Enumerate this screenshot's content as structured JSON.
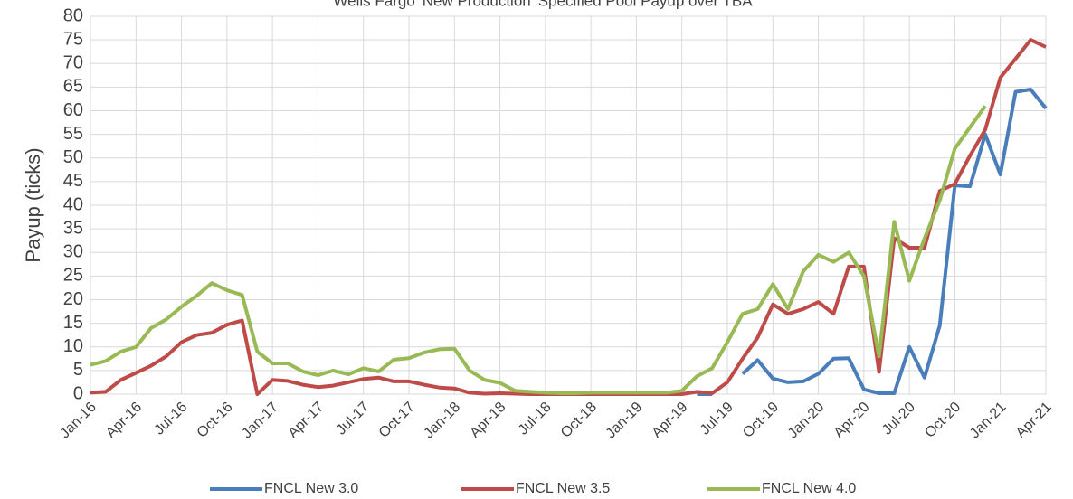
{
  "chart_data": {
    "type": "line",
    "title": "Wells Fargo 'New Production' Specified Pool Payup over TBA",
    "y_label": "Payup (ticks)",
    "categories": [
      "Jan-16",
      null,
      null,
      "Apr-16",
      null,
      null,
      "Jul-16",
      null,
      null,
      "Oct-16",
      null,
      null,
      "Jan-17",
      null,
      null,
      "Apr-17",
      null,
      null,
      "Jul-17",
      null,
      null,
      "Oct-17",
      null,
      null,
      "Jan-18",
      null,
      null,
      "Apr-18",
      null,
      null,
      "Jul-18",
      null,
      null,
      "Oct-18",
      null,
      null,
      "Jan-19",
      null,
      null,
      "Apr-19",
      null,
      null,
      "Jul-19",
      null,
      null,
      "Oct-19",
      null,
      null,
      "Jan-20",
      null,
      null,
      "Apr-20",
      null,
      null,
      "Jul-20",
      null,
      null,
      "Oct-20",
      null,
      null,
      "Jan-21",
      null,
      null,
      "Apr-21"
    ],
    "series": [
      {
        "name": "FNCL New 3.0",
        "color": "#4a7ebb",
        "values": [
          null,
          null,
          null,
          null,
          null,
          null,
          null,
          null,
          null,
          null,
          null,
          null,
          null,
          null,
          null,
          null,
          null,
          null,
          null,
          null,
          null,
          null,
          null,
          null,
          null,
          null,
          null,
          null,
          null,
          null,
          null,
          null,
          null,
          null,
          null,
          null,
          null,
          null,
          null,
          null,
          0,
          0,
          null,
          4.3,
          7.2,
          3.3,
          2.5,
          2.7,
          4.3,
          7.5,
          7.6,
          1,
          0.2,
          0.2,
          10,
          3.5,
          14.5,
          44.2,
          44,
          55,
          46.5,
          64,
          64.5,
          60.5
        ]
      },
      {
        "name": "FNCL New 3.5",
        "color": "#be4b48",
        "values": [
          0.3,
          0.5,
          3,
          4.5,
          6,
          8,
          11,
          12.5,
          13,
          14.7,
          15.6,
          0,
          3,
          2.8,
          2,
          1.5,
          1.8,
          2.5,
          3.2,
          3.5,
          2.7,
          2.7,
          2,
          1.4,
          1.2,
          0.3,
          0.1,
          0.2,
          0.1,
          0,
          0,
          0,
          0,
          0,
          0,
          0,
          0,
          0,
          0,
          0,
          0.5,
          0.2,
          2.5,
          7.5,
          12,
          19,
          17,
          18,
          19.5,
          17,
          27,
          27,
          4.7,
          33,
          31,
          31,
          43,
          44.5,
          50.5,
          56,
          67,
          71,
          75,
          73.5
        ]
      },
      {
        "name": "FNCL New 4.0",
        "color": "#98b954",
        "values": [
          6.2,
          7,
          9,
          10,
          14,
          15.8,
          18.5,
          20.8,
          23.5,
          22,
          21,
          9,
          6.5,
          6.5,
          4.8,
          4,
          5,
          4.2,
          5.5,
          4.8,
          7.3,
          7.6,
          8.8,
          9.5,
          9.6,
          5,
          3,
          2.4,
          0.7,
          0.5,
          0.3,
          0.2,
          0.2,
          0.3,
          0.3,
          0.3,
          0.3,
          0.3,
          0.3,
          0.7,
          3.8,
          5.5,
          11,
          17,
          18,
          23.3,
          18,
          26,
          29.5,
          28,
          30,
          25,
          8,
          36.5,
          24,
          33,
          41,
          52,
          56.5,
          61,
          null,
          null,
          null,
          null
        ]
      }
    ],
    "ylim": [
      0,
      80
    ],
    "yticks": [
      0,
      5,
      10,
      15,
      20,
      25,
      30,
      35,
      40,
      45,
      50,
      55,
      60,
      65,
      70,
      75,
      80
    ],
    "grid": true,
    "legend": "bottom"
  }
}
